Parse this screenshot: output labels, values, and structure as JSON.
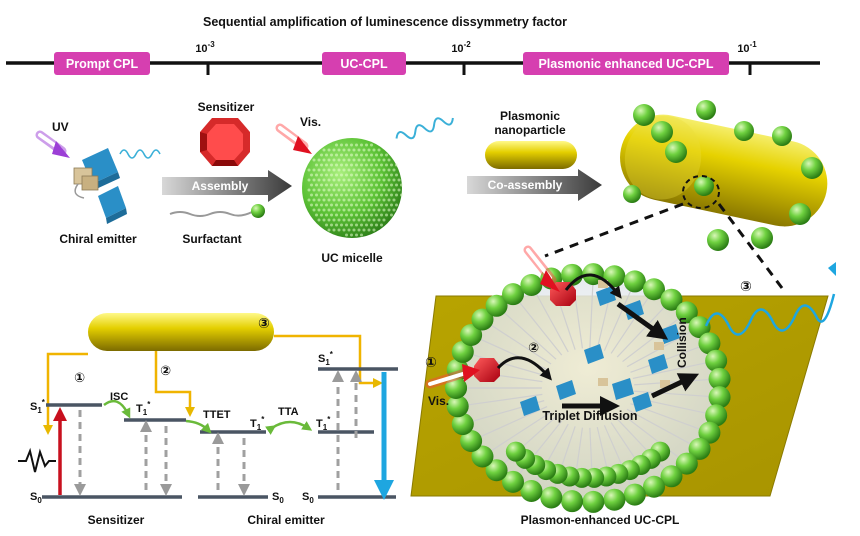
{
  "title": "Sequential amplification of luminescence dissymmetry factor",
  "timeline": {
    "stages": [
      "Prompt CPL",
      "UC-CPL",
      "Plasmonic enhanced UC-CPL"
    ],
    "ticks": [
      {
        "base": "10",
        "exp": "-3"
      },
      {
        "base": "10",
        "exp": "-2"
      },
      {
        "base": "10",
        "exp": "-1"
      }
    ]
  },
  "top_row": {
    "uv_label": "UV",
    "chiral_emitter_label": "Chiral emitter",
    "sensitizer_label": "Sensitizer",
    "surfactant_label": "Surfactant",
    "assembly_label": "Assembly",
    "vis_label": "Vis.",
    "uc_micelle_label": "UC micelle",
    "plasmonic_label_line1": "Plasmonic",
    "plasmonic_label_line2": "nanoparticle",
    "coassembly_label": "Co-assembly"
  },
  "energy_diagram": {
    "markers": [
      "①",
      "②",
      "③"
    ],
    "s1": "S",
    "s1_sub": "1",
    "t1": "T",
    "t1_sub": "1",
    "s0": "S",
    "s0_sub": "0",
    "isc": "ISC",
    "ttet": "TTET",
    "tta": "TTA",
    "sensitizer_caption": "Sensitizer",
    "chiral_caption": "Chiral emitter"
  },
  "micelle_panel": {
    "marker1": "①",
    "marker2": "②",
    "marker3": "③",
    "vis_label": "Vis.",
    "collision_label": "Collision",
    "triplet_diffusion_label": "Triplet Diffusion",
    "caption": "Plasmon-enhanced UC-CPL"
  },
  "colors": {
    "magenta": "#d63fb0",
    "gold": "#c9b400",
    "green": "#5cc236",
    "red": "#c8101e",
    "cyan": "#1ea6e0",
    "level_gray": "#4a5563",
    "arrow_gray": "#555555"
  }
}
